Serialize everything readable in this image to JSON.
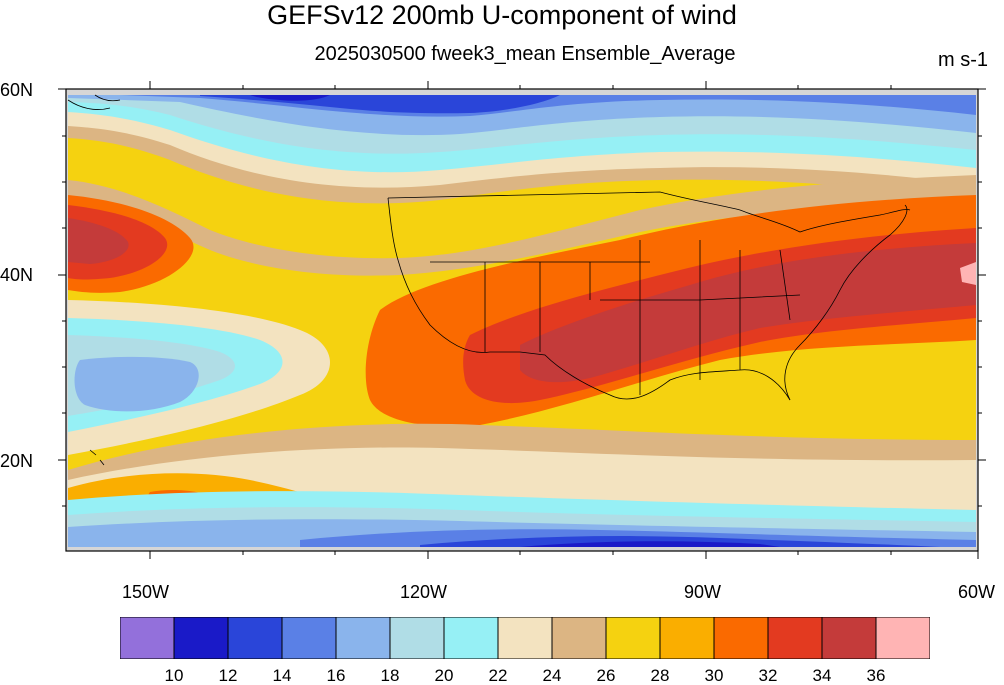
{
  "title": "GEFSv12 200mb U-component of wind",
  "subtitle": "2025030500 fweek3_mean Ensemble_Average",
  "units": "m s-1",
  "lat_labels": [
    "60N",
    "40N",
    "20N"
  ],
  "lon_labels": [
    "150W",
    "120W",
    "90W",
    "60W"
  ],
  "colorbar": {
    "colors": [
      "#9370DB",
      "#1A1AC8",
      "#2A45D9",
      "#5A80E6",
      "#8AB4EC",
      "#B0DDE6",
      "#96F0F5",
      "#F3E3C0",
      "#DCB583",
      "#F5D210",
      "#FAAE00",
      "#FA6A00",
      "#E33A20",
      "#C43B3A",
      "#FFB4B4"
    ],
    "labels": [
      "10",
      "12",
      "14",
      "16",
      "18",
      "20",
      "22",
      "24",
      "26",
      "28",
      "30",
      "32",
      "34",
      "36"
    ]
  }
}
